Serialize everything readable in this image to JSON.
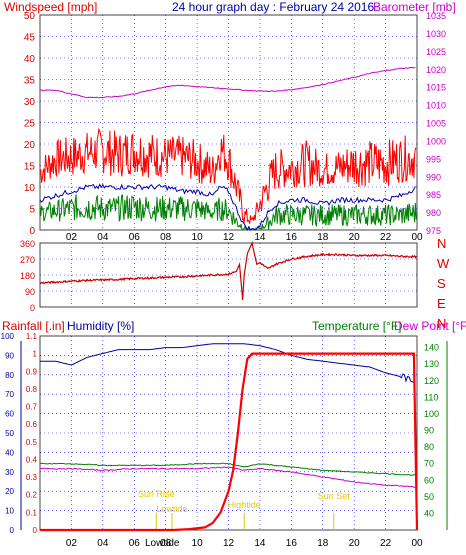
{
  "header": {
    "title": "24 hour graph day : February 24 2016",
    "windspeed_label": "Windspeed [mph]",
    "barometer_label": "Barometer [mb]"
  },
  "direction_panel": {
    "compass_labels": [
      "N",
      "W",
      "S",
      "E",
      "N"
    ]
  },
  "bottom_panel": {
    "rainfall_label": "Rainfall [.in]",
    "humidity_label": "Humidity [%]",
    "temperature_label": "Temperature [°F]",
    "dewpoint_label": "Dew Point [°F]"
  },
  "colors": {
    "wind_gust": "#ff0000",
    "wind_avg": "#0000b0",
    "wind_low": "#008000",
    "barometer": "#cc00cc",
    "direction": "#cc0000",
    "rainfall": "#ff0000",
    "humidity": "#00009c",
    "temperature": "#008000",
    "dewpoint": "#cc00cc",
    "sun_markers": "#e6c800",
    "grid": "#0000ff"
  },
  "chart_data": [
    {
      "type": "line",
      "name": "wind_and_barometer",
      "x_unit": "hour",
      "xlim": [
        0,
        24
      ],
      "x_tick_labels": [
        "02",
        "04",
        "06",
        "08",
        "10",
        "12",
        "14",
        "16",
        "18",
        "20",
        "22",
        "00"
      ],
      "left_axis": {
        "label": "Windspeed [mph]",
        "ylim": [
          0,
          50
        ],
        "ticks": [
          "0",
          "5",
          "10",
          "15",
          "20",
          "25",
          "30",
          "35",
          "40",
          "45",
          "50"
        ]
      },
      "right_axis": {
        "label": "Barometer [mb]",
        "ylim": [
          975,
          1035
        ],
        "ticks": [
          "975",
          "980",
          "985",
          "990",
          "995",
          "1000",
          "1005",
          "1010",
          "1015",
          "1020",
          "1025",
          "1030",
          "1035"
        ]
      },
      "series": [
        {
          "axis": "left",
          "kind": "gust_band",
          "x": [
            0,
            1,
            2,
            3,
            4,
            5,
            6,
            7,
            8,
            9,
            10,
            11,
            11.5,
            12,
            12.5,
            13,
            13.5,
            14,
            14.5,
            15,
            16,
            17,
            18,
            19,
            20,
            21,
            22,
            23,
            24
          ],
          "low": [
            10,
            12,
            12,
            13,
            13,
            12,
            13,
            12,
            12,
            12,
            11,
            9,
            14,
            11,
            6,
            1,
            1,
            3,
            6,
            9,
            10,
            10,
            10,
            10,
            10,
            10,
            10,
            11,
            12
          ],
          "high": [
            17,
            21,
            22,
            23,
            24,
            23,
            24,
            23,
            22,
            22,
            21,
            18,
            24,
            22,
            14,
            6,
            3,
            9,
            15,
            19,
            19,
            21,
            18,
            19,
            21,
            21,
            21,
            22,
            22
          ]
        },
        {
          "axis": "left",
          "kind": "line",
          "x": [
            0,
            1,
            2,
            3,
            4,
            5,
            6,
            7,
            8,
            9,
            10,
            11,
            11.5,
            12,
            12.5,
            13,
            13.5,
            14,
            14.5,
            15,
            16,
            17,
            18,
            19,
            20,
            21,
            22,
            23,
            24
          ],
          "values": [
            7,
            8,
            9,
            10,
            10,
            10,
            10,
            10,
            10,
            9,
            9,
            8,
            10,
            9,
            5,
            1,
            0,
            1,
            4,
            6,
            7,
            7,
            6,
            7,
            7,
            7,
            7,
            8,
            10
          ]
        },
        {
          "axis": "left",
          "kind": "band",
          "x": [
            0,
            1,
            2,
            3,
            4,
            5,
            6,
            7,
            8,
            9,
            10,
            11,
            11.5,
            12,
            12.5,
            13,
            13.5,
            14,
            14.5,
            15,
            16,
            17,
            18,
            19,
            20,
            21,
            22,
            23,
            24
          ],
          "low": [
            2,
            2,
            2,
            2,
            2,
            2,
            2,
            2,
            2,
            2,
            2,
            2,
            2,
            2,
            0,
            0,
            0,
            0,
            0,
            1,
            1,
            1,
            1,
            1,
            1,
            1,
            1,
            1,
            1
          ],
          "high": [
            6,
            7,
            8,
            9,
            8,
            8,
            9,
            8,
            8,
            8,
            8,
            6,
            8,
            7,
            4,
            1,
            0,
            1,
            3,
            6,
            6,
            6,
            6,
            6,
            6,
            6,
            6,
            6,
            7
          ]
        },
        {
          "axis": "right",
          "kind": "line",
          "x": [
            0,
            1,
            2,
            3,
            4,
            5,
            6,
            7,
            8,
            9,
            10,
            11,
            12,
            13,
            14,
            15,
            16,
            17,
            18,
            19,
            20,
            21,
            22,
            23,
            24
          ],
          "values": [
            1014,
            1014,
            1013,
            1012,
            1012,
            1012.3,
            1013,
            1014,
            1015,
            1015.4,
            1015,
            1014.7,
            1014.4,
            1014,
            1013.8,
            1013.7,
            1014.2,
            1014.8,
            1015.6,
            1016.6,
            1017.6,
            1018.7,
            1019.5,
            1020.1,
            1020.4
          ]
        }
      ]
    },
    {
      "type": "scatter",
      "name": "wind_direction",
      "x_unit": "hour",
      "xlim": [
        0,
        24
      ],
      "ylim": [
        0,
        360
      ],
      "y_ticks": [
        "0",
        "90",
        "180",
        "270",
        "360"
      ],
      "series": [
        {
          "x": [
            0,
            1,
            2,
            3,
            4,
            5,
            6,
            7,
            8,
            9,
            10,
            11,
            12,
            12.5,
            12.7,
            12.9,
            13,
            13.2,
            13.5,
            13.8,
            14,
            14.5,
            15,
            16,
            17,
            18,
            19,
            20,
            21,
            22,
            23,
            24
          ],
          "values": [
            135,
            140,
            145,
            150,
            152,
            155,
            160,
            163,
            167,
            170,
            175,
            180,
            185,
            200,
            240,
            40,
            180,
            300,
            360,
            240,
            250,
            215,
            240,
            270,
            285,
            295,
            295,
            290,
            290,
            290,
            285,
            282
          ]
        }
      ]
    },
    {
      "type": "line",
      "name": "rain_humidity_temperature",
      "x_unit": "hour",
      "xlim": [
        0,
        24
      ],
      "left_axis_humidity": {
        "label": "Humidity [%]",
        "ylim": [
          0,
          100
        ],
        "ticks": [
          "0",
          "10",
          "20",
          "30",
          "40",
          "50",
          "60",
          "70",
          "80",
          "90",
          "100"
        ]
      },
      "left_axis_rain": {
        "label": "Rainfall [.in]",
        "ylim": [
          0,
          1.1
        ],
        "ticks": [
          "0",
          "0.1",
          "0.2",
          "0.3",
          "0.4",
          "0.5",
          "0.6",
          "0.7",
          "0.8",
          "0.9",
          "1",
          "1.1"
        ]
      },
      "right_axis": {
        "label": "Temperature [°F] / Dew Point [°F]",
        "ylim": [
          30,
          147
        ],
        "ticks": [
          "40",
          "50",
          "60",
          "70",
          "80",
          "90",
          "100",
          "110",
          "120",
          "130",
          "140"
        ]
      },
      "sun_events": [
        {
          "label": "Sun Rise",
          "hour": 7.4
        },
        {
          "label": "Lowtide",
          "hour": 8.4
        },
        {
          "label": "Hightide",
          "hour": 13.0
        },
        {
          "label": "Sun Set",
          "hour": 18.7
        }
      ],
      "bottom_label": "Lowtide",
      "series": [
        {
          "axis": "humidity",
          "x": [
            0,
            1,
            2,
            3,
            4,
            5,
            6,
            7,
            8,
            9,
            10,
            11,
            12,
            13,
            14,
            15,
            16,
            17,
            18,
            19,
            20,
            21,
            22,
            23,
            23.5,
            24
          ],
          "values": [
            87,
            87,
            85,
            89,
            91,
            93,
            93,
            93,
            94,
            94,
            95,
            96,
            96,
            96,
            95,
            93,
            90,
            88,
            87,
            86,
            85,
            84,
            81,
            79,
            77,
            77
          ]
        },
        {
          "axis": "rain",
          "x": [
            0,
            8.5,
            9.5,
            10.5,
            11,
            11.5,
            12,
            12.3,
            12.6,
            12.9,
            13.2,
            13.5,
            14,
            23.8,
            24
          ],
          "values": [
            0,
            0,
            0.005,
            0.015,
            0.04,
            0.1,
            0.22,
            0.34,
            0.55,
            0.8,
            0.97,
            1.0,
            1.0,
            1.0,
            0
          ]
        },
        {
          "axis": "temp",
          "x": [
            0,
            2,
            4,
            6,
            8,
            10,
            12,
            13,
            14,
            16,
            18,
            20,
            22,
            24
          ],
          "values": [
            70,
            70,
            69,
            69,
            69,
            70,
            70,
            68,
            70,
            68,
            66,
            65,
            64,
            63
          ]
        },
        {
          "axis": "temp",
          "x": [
            0,
            2,
            4,
            6,
            8,
            10,
            12,
            13,
            14,
            16,
            18,
            20,
            22,
            24
          ],
          "values": [
            67,
            67,
            66,
            67,
            67,
            67,
            68,
            66,
            67,
            65,
            62,
            59,
            57,
            56
          ]
        }
      ]
    }
  ]
}
